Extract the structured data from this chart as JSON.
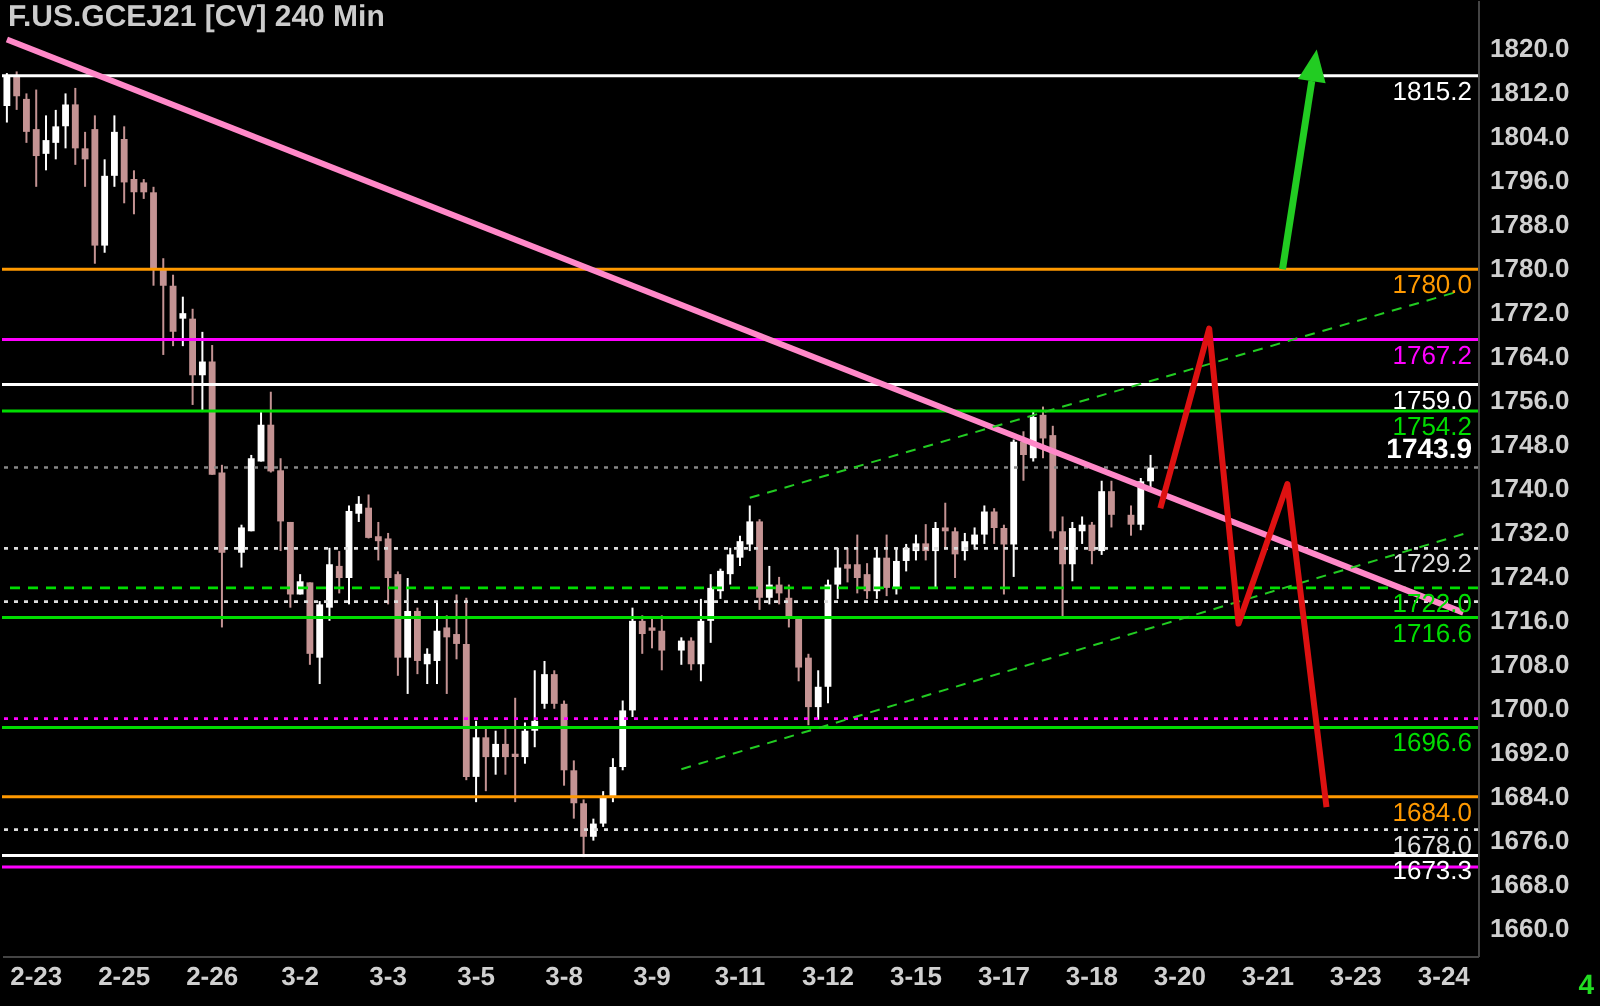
{
  "chart_data": {
    "type": "candlestick",
    "title": "F.US.GCEJ21 [CV] 240 Min",
    "categories": [
      null,
      null,
      null,
      "2-23",
      null,
      null,
      null,
      null,
      null,
      null,
      null,
      null,
      "2-25",
      null,
      null,
      null,
      null,
      null,
      null,
      null,
      null,
      "2-26",
      null,
      null,
      null,
      null,
      null,
      null,
      null,
      null,
      "3-2",
      null,
      null,
      null,
      null,
      null,
      null,
      null,
      null,
      "3-3",
      null,
      null,
      null,
      null,
      null,
      null,
      null,
      null,
      "3-5",
      null,
      null,
      null,
      null,
      null,
      null,
      null,
      null,
      "3-8",
      null,
      null,
      null,
      null,
      null,
      null,
      null,
      null,
      "3-9",
      null,
      null,
      null,
      null,
      null,
      null,
      null,
      null,
      "3-11",
      null,
      null,
      null,
      null,
      null,
      null,
      null,
      null,
      "3-12",
      null,
      null,
      null,
      null,
      null,
      null,
      null,
      null,
      "3-15",
      null,
      null,
      null,
      null,
      null,
      null,
      null,
      null,
      "3-17",
      null,
      null,
      null,
      null,
      null,
      null,
      null,
      null,
      "3-18",
      null,
      null,
      null,
      null,
      null,
      null,
      null,
      null,
      "3-20",
      null,
      null,
      null,
      null,
      null,
      null,
      null,
      null,
      "3-21",
      null,
      null,
      null,
      null,
      null,
      null,
      null,
      null,
      "3-23",
      null,
      null,
      null,
      null,
      null,
      null,
      null,
      null,
      "3-24",
      null,
      null,
      null
    ],
    "ohlc": [
      [
        1809.7,
        1815.7,
        1806.7,
        1815.1
      ],
      [
        1815.2,
        1816,
        1809,
        1811.5
      ],
      [
        1811,
        1812,
        1803,
        1805
      ],
      [
        1805.5,
        1812.7,
        1795,
        1800.6
      ],
      [
        1801,
        1808,
        1798,
        1803.5
      ],
      [
        1803,
        1809,
        1800,
        1806
      ],
      [
        1806,
        1812,
        1802,
        1810
      ],
      [
        1810,
        1813,
        1799,
        1802
      ],
      [
        1802,
        1805,
        1795,
        1800
      ],
      [
        1805.5,
        1808,
        1781,
        1784.3
      ],
      [
        1784.3,
        1800,
        1783,
        1797
      ],
      [
        1797,
        1808,
        1795,
        1805
      ],
      [
        1803.7,
        1806,
        1792,
        1795.8
      ],
      [
        1796.4,
        1798,
        1790,
        1794
      ],
      [
        1795.8,
        1796.4,
        1792.8,
        1794
      ],
      [
        1794,
        1795,
        1777,
        1780
      ],
      [
        1780,
        1782,
        1764.4,
        1777
      ],
      [
        1777,
        1779,
        1766,
        1768.6
      ],
      [
        1771,
        1775,
        1766,
        1772
      ],
      [
        1771,
        1772.8,
        1755.3,
        1760.7
      ],
      [
        1760.7,
        1768.6,
        1754,
        1763.2
      ],
      [
        1763.2,
        1766.2,
        1742.6,
        1742.6
      ],
      [
        1743,
        1744.4,
        1714.8,
        1728.4
      ],
      null,
      [
        1728.4,
        1733.5,
        1725.7,
        1733
      ],
      [
        1732.3,
        1746.2,
        1732.3,
        1745.6
      ],
      [
        1745,
        1754,
        1745,
        1751.7
      ],
      [
        1751.7,
        1757.7,
        1743,
        1743.2
      ],
      [
        1743.4,
        1745.6,
        1728.7,
        1734.1
      ],
      [
        1734,
        1734,
        1718.4,
        1720.8
      ],
      [
        1720.8,
        1724.5,
        1720.8,
        1723.2
      ],
      [
        1723,
        1723,
        1708,
        1710
      ],
      [
        1709.3,
        1719.6,
        1704.5,
        1719
      ],
      [
        1718.4,
        1729.3,
        1716,
        1726.3
      ],
      [
        1726,
        1728.7,
        1721,
        1723.8
      ],
      [
        1723.8,
        1737,
        1719,
        1736
      ],
      [
        1735.5,
        1738.7,
        1734,
        1737.3
      ],
      [
        1736.6,
        1739,
        1731,
        1731.1
      ],
      [
        1731.4,
        1734,
        1727,
        1730.5
      ],
      [
        1731,
        1732,
        1719,
        1723.8
      ],
      [
        1724.5,
        1725,
        1706,
        1709.3
      ],
      [
        1709.3,
        1723.8,
        1702.7,
        1717.8
      ],
      [
        1717.8,
        1718.4,
        1706.3,
        1708.7
      ],
      [
        1708.1,
        1711,
        1704.5,
        1710
      ],
      [
        1708.7,
        1719.6,
        1704.5,
        1714.2
      ],
      [
        1714.8,
        1717,
        1702.7,
        1713
      ],
      [
        1713.6,
        1720.8,
        1709,
        1711.8
      ],
      [
        1711.8,
        1720.2,
        1687,
        1687.6
      ],
      [
        1687.6,
        1697.8,
        1683,
        1694.8
      ],
      [
        1694.8,
        1696.6,
        1685,
        1691.2
      ],
      [
        1691.2,
        1696,
        1688,
        1693.6
      ],
      [
        1693.6,
        1696.6,
        1688,
        1691.2
      ],
      [
        1691.8,
        1702,
        1683,
        1691.2
      ],
      [
        1691.2,
        1697.5,
        1690,
        1696
      ],
      [
        1696,
        1707,
        1693,
        1697.8
      ],
      [
        1700.9,
        1708.7,
        1700,
        1706.3
      ],
      [
        1706.3,
        1707,
        1700,
        1700.9
      ],
      [
        1700.9,
        1701.5,
        1686,
        1688.8
      ],
      [
        1688.8,
        1690.6,
        1680,
        1682.8
      ],
      [
        1682.8,
        1683.5,
        1673,
        1676.7
      ],
      [
        1676.7,
        1680,
        1676,
        1679.1
      ],
      [
        1679.1,
        1685,
        1678.5,
        1684.1
      ],
      [
        1684.1,
        1691,
        1683,
        1689.4
      ],
      [
        1689.4,
        1701.5,
        1688.8,
        1699.7
      ],
      [
        1699.7,
        1718.4,
        1698.5,
        1716
      ],
      [
        1716,
        1717,
        1710,
        1713.6
      ],
      [
        1714.8,
        1716.6,
        1711,
        1714.2
      ],
      [
        1714.2,
        1717,
        1707,
        1710.6
      ],
      null,
      [
        1710.6,
        1713,
        1708,
        1712.4
      ],
      [
        1712.4,
        1713,
        1707,
        1708.1
      ],
      [
        1708.1,
        1720,
        1705,
        1716
      ],
      [
        1716,
        1724.5,
        1712,
        1722
      ],
      [
        1721.4,
        1725.5,
        1720,
        1725.1
      ],
      [
        1724.5,
        1729.3,
        1722.6,
        1728.1
      ],
      [
        1727.5,
        1731.5,
        1726,
        1730.5
      ],
      [
        1729.9,
        1737,
        1728.7,
        1734.1
      ],
      [
        1734.1,
        1734.5,
        1718,
        1720.2
      ],
      [
        1720.2,
        1726,
        1719,
        1722.6
      ],
      [
        1722.6,
        1724,
        1719,
        1721
      ],
      [
        1720.2,
        1722.6,
        1714.8,
        1716.6
      ],
      [
        1716.6,
        1716.6,
        1705,
        1707.5
      ],
      [
        1709.3,
        1710,
        1697,
        1700.3
      ],
      [
        1700.3,
        1707,
        1698,
        1704
      ],
      [
        1704,
        1723.5,
        1701,
        1722.6
      ],
      [
        1722.6,
        1729.3,
        1720,
        1725.7
      ],
      [
        1726.3,
        1729.3,
        1723,
        1725.5
      ],
      [
        1726.3,
        1731.7,
        1721,
        1723.8
      ],
      [
        1724.5,
        1726.5,
        1720,
        1721.4
      ],
      [
        1721.4,
        1729.3,
        1720,
        1727.5
      ],
      [
        1727.5,
        1731.7,
        1720.5,
        1722
      ],
      [
        1722,
        1729.3,
        1720.8,
        1726.9
      ],
      [
        1726.9,
        1730,
        1725,
        1729.3
      ],
      [
        1728.7,
        1731.7,
        1727,
        1730.1
      ],
      [
        1730.1,
        1733.6,
        1727,
        1728.7
      ],
      [
        1728.7,
        1734,
        1722,
        1732.9
      ],
      [
        1733,
        1737.5,
        1729,
        1732.3
      ],
      [
        1732.3,
        1733,
        1723.8,
        1728.1
      ],
      [
        1728.7,
        1732,
        1727,
        1730.5
      ],
      [
        1729.9,
        1733,
        1729,
        1731.7
      ],
      [
        1731.7,
        1737,
        1730,
        1735.9
      ],
      [
        1735.9,
        1736.5,
        1730,
        1732.9
      ],
      [
        1732.9,
        1733.5,
        1720.8,
        1729.9
      ],
      [
        1729.9,
        1749,
        1724,
        1748.6
      ],
      [
        1748.6,
        1750.5,
        1741.5,
        1746.2
      ],
      [
        1745.6,
        1754.2,
        1745,
        1753.1
      ],
      [
        1753.5,
        1755,
        1745.6,
        1749.2
      ],
      [
        1749.8,
        1751.5,
        1731,
        1732.3
      ],
      [
        1732.3,
        1735,
        1716.6,
        1726.3
      ],
      [
        1726.3,
        1734,
        1723.2,
        1732.9
      ],
      [
        1732.3,
        1735,
        1730,
        1733.5
      ],
      [
        1733.5,
        1734,
        1726.3,
        1728.7
      ],
      [
        1728.7,
        1741.5,
        1728,
        1739.6
      ],
      [
        1739.6,
        1741.5,
        1733,
        1735.3
      ],
      null,
      [
        1735.3,
        1737,
        1731.5,
        1733.5
      ],
      [
        1733.5,
        1742,
        1732.5,
        1741.4
      ],
      [
        1741.4,
        1746.2,
        1740,
        1743.9
      ],
      null,
      null,
      null,
      null,
      null,
      null,
      null,
      null,
      null,
      null,
      null,
      null,
      null,
      null,
      null,
      null,
      null,
      null,
      null,
      null,
      null,
      null,
      null,
      null,
      null,
      null,
      null,
      null,
      null,
      null,
      null,
      null,
      null
    ],
    "series": [
      {
        "type": "line",
        "color": "#ff88c8",
        "line_style": "solid",
        "values": [
          1821.8,
          null,
          null,
          null,
          null,
          null,
          null,
          null,
          null,
          null,
          null,
          null,
          null,
          null,
          null,
          null,
          null,
          null,
          null,
          null,
          null,
          null,
          null,
          null,
          null,
          null,
          null,
          null,
          null,
          null,
          null,
          null,
          null,
          null,
          null,
          null,
          null,
          null,
          null,
          null,
          null,
          null,
          null,
          null,
          null,
          null,
          null,
          null,
          null,
          null,
          null,
          null,
          null,
          null,
          null,
          null,
          null,
          null,
          null,
          null,
          null,
          null,
          null,
          null,
          null,
          null,
          null,
          null,
          null,
          null,
          null,
          null,
          null,
          null,
          null,
          null,
          null,
          null,
          null,
          null,
          null,
          null,
          null,
          null,
          null,
          null,
          null,
          null,
          null,
          null,
          null,
          null,
          null,
          null,
          null,
          null,
          null,
          null,
          null,
          null,
          null,
          null,
          null,
          null,
          null,
          null,
          null,
          null,
          null,
          null,
          null,
          null,
          null,
          null,
          null,
          null,
          null,
          null,
          null,
          null,
          null,
          null,
          null,
          null,
          null,
          null,
          null,
          null,
          null,
          null,
          null,
          null,
          null,
          null,
          null,
          null,
          null,
          null,
          null,
          null,
          null,
          null,
          null,
          null,
          null,
          null,
          null,
          null,
          null,
          1717.5,
          null
        ]
      },
      {
        "type": "line",
        "color": "#22cc22",
        "line_style": "dashed",
        "values": [
          null,
          null,
          null,
          null,
          null,
          null,
          null,
          null,
          null,
          null,
          null,
          null,
          null,
          null,
          null,
          null,
          null,
          null,
          null,
          null,
          null,
          null,
          null,
          null,
          null,
          null,
          null,
          null,
          null,
          null,
          null,
          null,
          null,
          null,
          null,
          null,
          null,
          null,
          null,
          null,
          null,
          null,
          null,
          null,
          null,
          null,
          null,
          null,
          null,
          null,
          null,
          null,
          null,
          null,
          null,
          null,
          null,
          null,
          null,
          null,
          null,
          null,
          null,
          null,
          null,
          null,
          null,
          null,
          null,
          null,
          null,
          null,
          null,
          null,
          null,
          null,
          1738.4,
          null,
          null,
          null,
          null,
          null,
          null,
          null,
          null,
          null,
          null,
          null,
          null,
          null,
          null,
          null,
          null,
          null,
          null,
          null,
          null,
          null,
          null,
          null,
          null,
          null,
          null,
          null,
          null,
          null,
          null,
          null,
          null,
          null,
          null,
          null,
          null,
          null,
          null,
          null,
          null,
          null,
          null,
          null,
          null,
          null,
          null,
          null,
          null,
          null,
          null,
          null,
          null,
          null,
          null,
          null,
          null,
          null,
          null,
          null,
          null,
          null,
          null,
          null,
          null,
          null,
          null,
          null,
          null,
          null,
          null,
          null,
          1775.7,
          null,
          null
        ]
      },
      {
        "type": "line",
        "color": "#22cc22",
        "line_style": "dashed",
        "values": [
          null,
          null,
          null,
          null,
          null,
          null,
          null,
          null,
          null,
          null,
          null,
          null,
          null,
          null,
          null,
          null,
          null,
          null,
          null,
          null,
          null,
          null,
          null,
          null,
          null,
          null,
          null,
          null,
          null,
          null,
          null,
          null,
          null,
          null,
          null,
          null,
          null,
          null,
          null,
          null,
          null,
          null,
          null,
          null,
          null,
          null,
          null,
          null,
          null,
          null,
          null,
          null,
          null,
          null,
          null,
          null,
          null,
          null,
          null,
          null,
          null,
          null,
          null,
          null,
          null,
          null,
          null,
          null,
          null,
          1689,
          null,
          null,
          null,
          null,
          null,
          null,
          null,
          null,
          null,
          null,
          null,
          null,
          null,
          null,
          null,
          null,
          null,
          null,
          null,
          null,
          null,
          null,
          null,
          null,
          null,
          null,
          null,
          null,
          null,
          null,
          null,
          null,
          null,
          null,
          null,
          null,
          null,
          null,
          null,
          null,
          null,
          null,
          null,
          null,
          null,
          null,
          null,
          null,
          null,
          null,
          null,
          null,
          null,
          null,
          null,
          null,
          null,
          null,
          null,
          null,
          null,
          null,
          null,
          null,
          null,
          null,
          null,
          null,
          null,
          null,
          null,
          null,
          null,
          null,
          null,
          null,
          null,
          null,
          null,
          1731.8,
          null
        ]
      },
      {
        "type": "line",
        "color": "#dd1111",
        "line_style": "solid",
        "values": [
          null,
          null,
          null,
          null,
          null,
          null,
          null,
          null,
          null,
          null,
          null,
          null,
          null,
          null,
          null,
          null,
          null,
          null,
          null,
          null,
          null,
          null,
          null,
          null,
          null,
          null,
          null,
          null,
          null,
          null,
          null,
          null,
          null,
          null,
          null,
          null,
          null,
          null,
          null,
          null,
          null,
          null,
          null,
          null,
          null,
          null,
          null,
          null,
          null,
          null,
          null,
          null,
          null,
          null,
          null,
          null,
          null,
          null,
          null,
          null,
          null,
          null,
          null,
          null,
          null,
          null,
          null,
          null,
          null,
          null,
          null,
          null,
          null,
          null,
          null,
          null,
          null,
          null,
          null,
          null,
          null,
          null,
          null,
          null,
          null,
          null,
          null,
          null,
          null,
          null,
          null,
          null,
          null,
          null,
          null,
          null,
          null,
          null,
          null,
          null,
          null,
          null,
          null,
          null,
          null,
          null,
          null,
          null,
          null,
          null,
          null,
          null,
          null,
          null,
          null,
          null,
          null,
          null,
          1736.5,
          null,
          null,
          null,
          null,
          1769.2,
          null,
          null,
          1715.5,
          null,
          null,
          null,
          null,
          1740.9,
          null,
          null,
          null,
          1682.1,
          null,
          null,
          null,
          null,
          null,
          null,
          null,
          null,
          null,
          null,
          null,
          null,
          null,
          null,
          null
        ]
      }
    ],
    "ylim": [
      1655,
      1829
    ],
    "yticks": [
      {
        "value": 1820,
        "label": "1820.0"
      },
      {
        "value": 1812,
        "label": "1812.0"
      },
      {
        "value": 1804,
        "label": "1804.0"
      },
      {
        "value": 1796,
        "label": "1796.0"
      },
      {
        "value": 1788,
        "label": "1788.0"
      },
      {
        "value": 1780,
        "label": "1780.0"
      },
      {
        "value": 1772,
        "label": "1772.0"
      },
      {
        "value": 1764,
        "label": "1764.0"
      },
      {
        "value": 1756,
        "label": "1756.0"
      },
      {
        "value": 1748,
        "label": "1748.0"
      },
      {
        "value": 1740,
        "label": "1740.0"
      },
      {
        "value": 1732,
        "label": "1732.0"
      },
      {
        "value": 1724,
        "label": "1724.0"
      },
      {
        "value": 1716,
        "label": "1716.0"
      },
      {
        "value": 1708,
        "label": "1708.0"
      },
      {
        "value": 1700,
        "label": "1700.0"
      },
      {
        "value": 1692,
        "label": "1692.0"
      },
      {
        "value": 1684,
        "label": "1684.0"
      },
      {
        "value": 1676,
        "label": "1676.0"
      },
      {
        "value": 1668,
        "label": "1668.0"
      },
      {
        "value": 1660,
        "label": "1660.0"
      }
    ],
    "ref_lines": [
      {
        "axis": "y",
        "value": 1815.2,
        "label": "1815.2",
        "color": "#ffffff",
        "line_style": "solid"
      },
      {
        "axis": "y",
        "value": 1780.0,
        "label": "1780.0",
        "color": "#ff9900",
        "line_style": "solid"
      },
      {
        "axis": "y",
        "value": 1767.2,
        "label": "1767.2",
        "color": "#ff00ff",
        "line_style": "solid"
      },
      {
        "axis": "y",
        "value": 1759.0,
        "label": "1759.0",
        "color": "#ffffff",
        "line_style": "solid"
      },
      {
        "axis": "y",
        "value": 1754.2,
        "label": "1754.2",
        "color": "#00dd00",
        "line_style": "solid"
      },
      {
        "axis": "y",
        "value": 1743.9,
        "label": null,
        "color": "#888888",
        "line_style": "dotted"
      },
      {
        "axis": "y",
        "value": 1729.2,
        "label": "1729.2",
        "color": "#dddddd",
        "line_style": "dotted"
      },
      {
        "axis": "y",
        "value": 1722.0,
        "label": "1722.0",
        "color": "#00dd00",
        "line_style": "dashed"
      },
      {
        "axis": "y",
        "value": 1719.5,
        "label": null,
        "color": "#dddddd",
        "line_style": "dotted"
      },
      {
        "axis": "y",
        "value": 1716.6,
        "label": "1716.6",
        "color": "#00dd00",
        "line_style": "solid"
      },
      {
        "axis": "y",
        "value": 1698.2,
        "label": null,
        "color": "#ff00ff",
        "line_style": "dotted"
      },
      {
        "axis": "y",
        "value": 1696.6,
        "label": "1696.6",
        "color": "#00dd00",
        "line_style": "solid"
      },
      {
        "axis": "y",
        "value": 1684.0,
        "label": "1684.0",
        "color": "#ff9900",
        "line_style": "solid"
      },
      {
        "axis": "y",
        "value": 1678.0,
        "label": "1678.0",
        "color": "#dddddd",
        "line_style": "dotted"
      },
      {
        "axis": "y",
        "value": 1673.3,
        "label": "1673.3",
        "color": "#ffffff",
        "line_style": "solid"
      },
      {
        "axis": "y",
        "value": 1671.2,
        "label": null,
        "color": "#ff00ff",
        "line_style": "solid"
      }
    ],
    "annotations": [
      {
        "text": "1743.9",
        "y": 1743.9
      },
      "4"
    ]
  }
}
